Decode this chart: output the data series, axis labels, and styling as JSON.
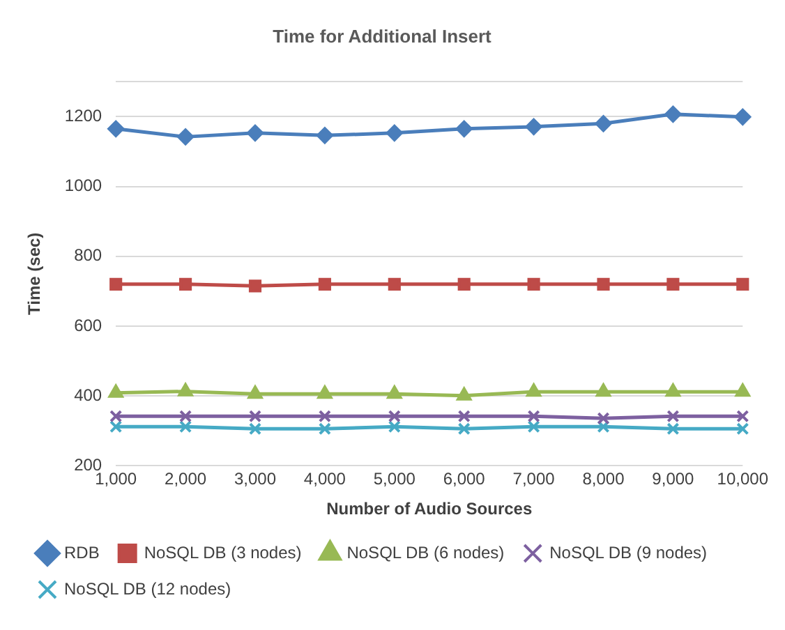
{
  "chart_data": {
    "type": "line",
    "title": "Time for Additional Insert",
    "xlabel": "Number of Audio Sources",
    "ylabel": "Time (sec)",
    "categories": [
      "1,000",
      "2,000",
      "3,000",
      "4,000",
      "5,000",
      "6,000",
      "7,000",
      "8,000",
      "9,000",
      "10,000"
    ],
    "series": [
      {
        "name": "RDB",
        "color": "#4a7ebb",
        "marker": "diamond",
        "values": [
          1165,
          1142,
          1153,
          1146,
          1153,
          1165,
          1171,
          1180,
          1207,
          1199
        ]
      },
      {
        "name": "NoSQL DB (3 nodes)",
        "color": "#be4b48",
        "marker": "square",
        "values": [
          720,
          720,
          715,
          720,
          720,
          720,
          720,
          720,
          720,
          720
        ]
      },
      {
        "name": "NoSQL DB (6 nodes)",
        "color": "#98b954",
        "marker": "triangle",
        "values": [
          409,
          413,
          406,
          406,
          406,
          401,
          412,
          412,
          412,
          412
        ]
      },
      {
        "name": "NoSQL DB (9 nodes)",
        "color": "#7d60a0",
        "marker": "cross",
        "values": [
          342,
          342,
          342,
          342,
          342,
          342,
          342,
          336,
          342,
          342
        ]
      },
      {
        "name": "NoSQL DB (12 nodes)",
        "color": "#46aac5",
        "marker": "cross",
        "values": [
          312,
          312,
          306,
          306,
          312,
          306,
          312,
          312,
          306,
          306
        ]
      }
    ],
    "ylim": [
      200,
      1300
    ],
    "yticks": [
      200,
      400,
      600,
      800,
      1000,
      1200,
      {
        "value": 1300,
        "label": null
      }
    ],
    "grid": "y",
    "legend": "bottom",
    "line_style": "solid"
  }
}
